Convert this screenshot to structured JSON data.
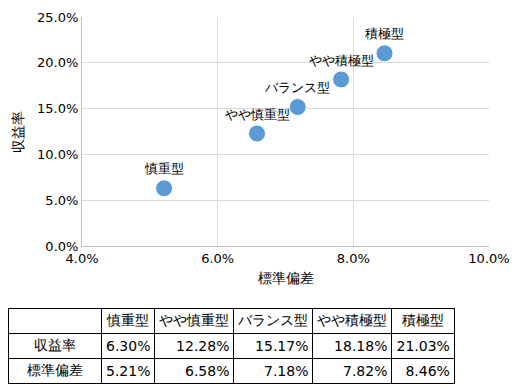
{
  "chart_data": {
    "type": "scatter",
    "x_label": "標準偏差",
    "y_label": "収益率",
    "point_labels": [
      "慎重型",
      "やや慎重型",
      "バランス型",
      "やや積極型",
      "積極型"
    ],
    "x": [
      5.21,
      6.58,
      7.18,
      7.82,
      8.46
    ],
    "values": [
      6.3,
      12.28,
      15.17,
      18.18,
      21.03
    ],
    "color": "#5b9bd5",
    "marker": "circle",
    "grid": true,
    "xlim": [
      4,
      10
    ],
    "xticks": [
      {
        "value": 4,
        "label": "4.0%"
      },
      {
        "value": 6,
        "label": "6.0%"
      },
      {
        "value": 8,
        "label": "8.0%"
      },
      {
        "value": 10,
        "label": "10.0%"
      }
    ],
    "ylim": [
      0,
      25
    ],
    "yticks": [
      {
        "value": 0,
        "label": "0.0%"
      },
      {
        "value": 5,
        "label": "5.0%"
      },
      {
        "value": 10,
        "label": "10.0%"
      },
      {
        "value": 15,
        "label": "15.0%"
      },
      {
        "value": 20,
        "label": "20.0%"
      },
      {
        "value": 25,
        "label": "25.0%"
      }
    ]
  },
  "table": {
    "columns": [
      "慎重型",
      "やや慎重型",
      "バランス型",
      "やや積極型",
      "積極型"
    ],
    "rows": [
      {
        "label": "収益率",
        "cells": [
          "6.30%",
          "12.28%",
          "15.17%",
          "18.18%",
          "21.03%"
        ]
      },
      {
        "label": "標準偏差",
        "cells": [
          "5.21%",
          "6.58%",
          "7.18%",
          "7.82%",
          "8.46%"
        ]
      }
    ]
  }
}
